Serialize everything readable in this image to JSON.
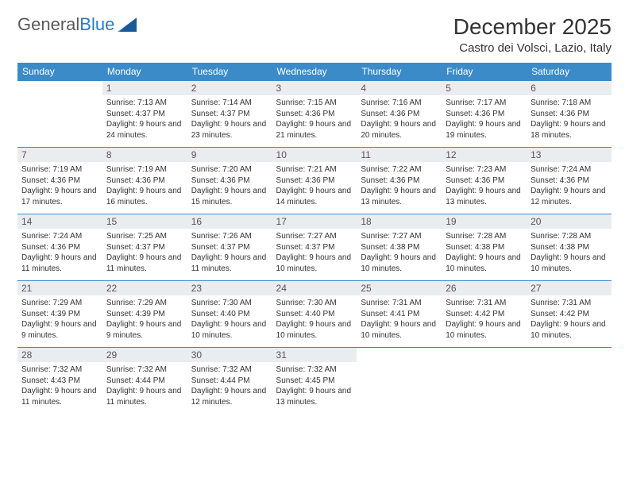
{
  "brand": {
    "part1": "General",
    "part2": "Blue"
  },
  "title": "December 2025",
  "location": "Castro dei Volsci, Lazio, Italy",
  "colors": {
    "header_bg": "#3b8bc9",
    "header_text": "#ffffff",
    "daynum_bg": "#e9edf0",
    "row_border": "#3b8bc9",
    "body_text": "#333333",
    "brand_gray": "#5a5a5a",
    "brand_blue": "#2b7bbf"
  },
  "typography": {
    "title_fontsize": 28,
    "location_fontsize": 15,
    "dow_fontsize": 12,
    "daynum_fontsize": 12,
    "body_fontsize": 10
  },
  "days_of_week": [
    "Sunday",
    "Monday",
    "Tuesday",
    "Wednesday",
    "Thursday",
    "Friday",
    "Saturday"
  ],
  "weeks": [
    [
      {
        "n": "",
        "sunrise": "",
        "sunset": "",
        "daylight": ""
      },
      {
        "n": "1",
        "sunrise": "Sunrise: 7:13 AM",
        "sunset": "Sunset: 4:37 PM",
        "daylight": "Daylight: 9 hours and 24 minutes."
      },
      {
        "n": "2",
        "sunrise": "Sunrise: 7:14 AM",
        "sunset": "Sunset: 4:37 PM",
        "daylight": "Daylight: 9 hours and 23 minutes."
      },
      {
        "n": "3",
        "sunrise": "Sunrise: 7:15 AM",
        "sunset": "Sunset: 4:36 PM",
        "daylight": "Daylight: 9 hours and 21 minutes."
      },
      {
        "n": "4",
        "sunrise": "Sunrise: 7:16 AM",
        "sunset": "Sunset: 4:36 PM",
        "daylight": "Daylight: 9 hours and 20 minutes."
      },
      {
        "n": "5",
        "sunrise": "Sunrise: 7:17 AM",
        "sunset": "Sunset: 4:36 PM",
        "daylight": "Daylight: 9 hours and 19 minutes."
      },
      {
        "n": "6",
        "sunrise": "Sunrise: 7:18 AM",
        "sunset": "Sunset: 4:36 PM",
        "daylight": "Daylight: 9 hours and 18 minutes."
      }
    ],
    [
      {
        "n": "7",
        "sunrise": "Sunrise: 7:19 AM",
        "sunset": "Sunset: 4:36 PM",
        "daylight": "Daylight: 9 hours and 17 minutes."
      },
      {
        "n": "8",
        "sunrise": "Sunrise: 7:19 AM",
        "sunset": "Sunset: 4:36 PM",
        "daylight": "Daylight: 9 hours and 16 minutes."
      },
      {
        "n": "9",
        "sunrise": "Sunrise: 7:20 AM",
        "sunset": "Sunset: 4:36 PM",
        "daylight": "Daylight: 9 hours and 15 minutes."
      },
      {
        "n": "10",
        "sunrise": "Sunrise: 7:21 AM",
        "sunset": "Sunset: 4:36 PM",
        "daylight": "Daylight: 9 hours and 14 minutes."
      },
      {
        "n": "11",
        "sunrise": "Sunrise: 7:22 AM",
        "sunset": "Sunset: 4:36 PM",
        "daylight": "Daylight: 9 hours and 13 minutes."
      },
      {
        "n": "12",
        "sunrise": "Sunrise: 7:23 AM",
        "sunset": "Sunset: 4:36 PM",
        "daylight": "Daylight: 9 hours and 13 minutes."
      },
      {
        "n": "13",
        "sunrise": "Sunrise: 7:24 AM",
        "sunset": "Sunset: 4:36 PM",
        "daylight": "Daylight: 9 hours and 12 minutes."
      }
    ],
    [
      {
        "n": "14",
        "sunrise": "Sunrise: 7:24 AM",
        "sunset": "Sunset: 4:36 PM",
        "daylight": "Daylight: 9 hours and 11 minutes."
      },
      {
        "n": "15",
        "sunrise": "Sunrise: 7:25 AM",
        "sunset": "Sunset: 4:37 PM",
        "daylight": "Daylight: 9 hours and 11 minutes."
      },
      {
        "n": "16",
        "sunrise": "Sunrise: 7:26 AM",
        "sunset": "Sunset: 4:37 PM",
        "daylight": "Daylight: 9 hours and 11 minutes."
      },
      {
        "n": "17",
        "sunrise": "Sunrise: 7:27 AM",
        "sunset": "Sunset: 4:37 PM",
        "daylight": "Daylight: 9 hours and 10 minutes."
      },
      {
        "n": "18",
        "sunrise": "Sunrise: 7:27 AM",
        "sunset": "Sunset: 4:38 PM",
        "daylight": "Daylight: 9 hours and 10 minutes."
      },
      {
        "n": "19",
        "sunrise": "Sunrise: 7:28 AM",
        "sunset": "Sunset: 4:38 PM",
        "daylight": "Daylight: 9 hours and 10 minutes."
      },
      {
        "n": "20",
        "sunrise": "Sunrise: 7:28 AM",
        "sunset": "Sunset: 4:38 PM",
        "daylight": "Daylight: 9 hours and 10 minutes."
      }
    ],
    [
      {
        "n": "21",
        "sunrise": "Sunrise: 7:29 AM",
        "sunset": "Sunset: 4:39 PM",
        "daylight": "Daylight: 9 hours and 9 minutes."
      },
      {
        "n": "22",
        "sunrise": "Sunrise: 7:29 AM",
        "sunset": "Sunset: 4:39 PM",
        "daylight": "Daylight: 9 hours and 9 minutes."
      },
      {
        "n": "23",
        "sunrise": "Sunrise: 7:30 AM",
        "sunset": "Sunset: 4:40 PM",
        "daylight": "Daylight: 9 hours and 10 minutes."
      },
      {
        "n": "24",
        "sunrise": "Sunrise: 7:30 AM",
        "sunset": "Sunset: 4:40 PM",
        "daylight": "Daylight: 9 hours and 10 minutes."
      },
      {
        "n": "25",
        "sunrise": "Sunrise: 7:31 AM",
        "sunset": "Sunset: 4:41 PM",
        "daylight": "Daylight: 9 hours and 10 minutes."
      },
      {
        "n": "26",
        "sunrise": "Sunrise: 7:31 AM",
        "sunset": "Sunset: 4:42 PM",
        "daylight": "Daylight: 9 hours and 10 minutes."
      },
      {
        "n": "27",
        "sunrise": "Sunrise: 7:31 AM",
        "sunset": "Sunset: 4:42 PM",
        "daylight": "Daylight: 9 hours and 10 minutes."
      }
    ],
    [
      {
        "n": "28",
        "sunrise": "Sunrise: 7:32 AM",
        "sunset": "Sunset: 4:43 PM",
        "daylight": "Daylight: 9 hours and 11 minutes."
      },
      {
        "n": "29",
        "sunrise": "Sunrise: 7:32 AM",
        "sunset": "Sunset: 4:44 PM",
        "daylight": "Daylight: 9 hours and 11 minutes."
      },
      {
        "n": "30",
        "sunrise": "Sunrise: 7:32 AM",
        "sunset": "Sunset: 4:44 PM",
        "daylight": "Daylight: 9 hours and 12 minutes."
      },
      {
        "n": "31",
        "sunrise": "Sunrise: 7:32 AM",
        "sunset": "Sunset: 4:45 PM",
        "daylight": "Daylight: 9 hours and 13 minutes."
      },
      {
        "n": "",
        "sunrise": "",
        "sunset": "",
        "daylight": ""
      },
      {
        "n": "",
        "sunrise": "",
        "sunset": "",
        "daylight": ""
      },
      {
        "n": "",
        "sunrise": "",
        "sunset": "",
        "daylight": ""
      }
    ]
  ]
}
